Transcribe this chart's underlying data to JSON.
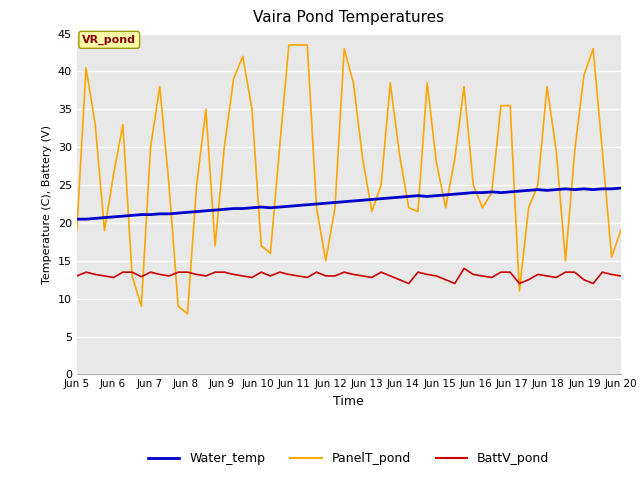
{
  "title": "Vaira Pond Temperatures",
  "xlabel": "Time",
  "ylabel": "Temperature (C), Battery (V)",
  "annotation": "VR_pond",
  "xlim_start": 5,
  "xlim_end": 20,
  "ylim": [
    0,
    45
  ],
  "yticks": [
    0,
    5,
    10,
    15,
    20,
    25,
    30,
    35,
    40,
    45
  ],
  "xtick_labels": [
    "Jun 5",
    "Jun 6",
    "Jun 7",
    "Jun 8",
    "Jun 9",
    "Jun 10",
    "Jun 11",
    "Jun 12",
    "Jun 13",
    "Jun 14",
    "Jun 15",
    "Jun 16",
    "Jun 17",
    "Jun 18",
    "Jun 19",
    "Jun 20"
  ],
  "water_temp_color": "#0000cc",
  "panel_temp_color": "#ffa500",
  "batt_color": "#cc0000",
  "fig_bg_color": "#ffffff",
  "plot_bg_color": "#e8e8e8",
  "grid_color": "#ffffff",
  "legend_labels": [
    "Water_temp",
    "PanelT_pond",
    "BattV_pond"
  ],
  "water_temp": [
    20.5,
    20.5,
    20.6,
    20.7,
    20.8,
    20.9,
    21.0,
    21.1,
    21.1,
    21.2,
    21.2,
    21.3,
    21.4,
    21.5,
    21.6,
    21.7,
    21.8,
    21.9,
    21.9,
    22.0,
    22.1,
    22.0,
    22.1,
    22.2,
    22.3,
    22.4,
    22.5,
    22.6,
    22.7,
    22.8,
    22.9,
    23.0,
    23.1,
    23.2,
    23.3,
    23.4,
    23.5,
    23.6,
    23.5,
    23.6,
    23.7,
    23.8,
    23.9,
    24.0,
    24.0,
    24.1,
    24.0,
    24.1,
    24.2,
    24.3,
    24.4,
    24.3,
    24.4,
    24.5,
    24.4,
    24.5,
    24.4,
    24.5,
    24.5,
    24.6
  ],
  "panel_temp": [
    19.0,
    40.5,
    33.0,
    19.0,
    26.5,
    33.0,
    13.0,
    9.0,
    30.0,
    38.0,
    25.0,
    9.0,
    8.0,
    25.0,
    35.0,
    17.0,
    30.0,
    39.0,
    42.0,
    35.0,
    17.0,
    16.0,
    30.0,
    43.5,
    43.5,
    43.5,
    22.0,
    15.0,
    22.0,
    43.0,
    38.5,
    28.5,
    21.5,
    25.0,
    38.5,
    29.0,
    22.0,
    21.5,
    38.5,
    28.0,
    22.0,
    28.5,
    38.0,
    25.0,
    22.0,
    24.0,
    35.5,
    35.5,
    11.0,
    22.0,
    25.0,
    38.0,
    29.5,
    15.0,
    29.5,
    39.5,
    43.0,
    29.5,
    15.5,
    19.0
  ],
  "batt_voltage": [
    13.0,
    13.5,
    13.2,
    13.0,
    12.8,
    13.5,
    13.5,
    12.9,
    13.5,
    13.2,
    13.0,
    13.5,
    13.5,
    13.2,
    13.0,
    13.5,
    13.5,
    13.2,
    13.0,
    12.8,
    13.5,
    13.0,
    13.5,
    13.2,
    13.0,
    12.8,
    13.5,
    13.0,
    13.0,
    13.5,
    13.2,
    13.0,
    12.8,
    13.5,
    13.0,
    12.5,
    12.0,
    13.5,
    13.2,
    13.0,
    12.5,
    12.0,
    14.0,
    13.2,
    13.0,
    12.8,
    13.5,
    13.5,
    12.0,
    12.5,
    13.2,
    13.0,
    12.8,
    13.5,
    13.5,
    12.5,
    12.0,
    13.5,
    13.2,
    13.0
  ]
}
